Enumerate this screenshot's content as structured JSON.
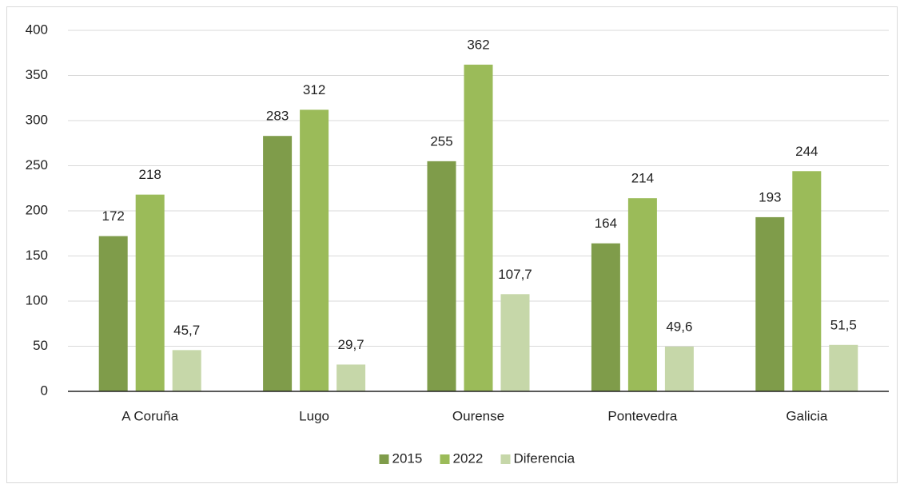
{
  "chart_data": {
    "type": "bar",
    "categories": [
      "A Coruña",
      "Lugo",
      "Ourense",
      "Pontevedra",
      "Galicia"
    ],
    "series": [
      {
        "name": "2015",
        "color": "#7f9c4a",
        "values": [
          172,
          283,
          255,
          164,
          193
        ]
      },
      {
        "name": "2022",
        "color": "#9bbb59",
        "values": [
          218,
          312,
          362,
          214,
          244
        ]
      },
      {
        "name": "Diferencia",
        "color": "#c6d7a9",
        "values": [
          45.7,
          29.7,
          107.7,
          49.6,
          51.5
        ],
        "value_labels": [
          "45,7",
          "29,7",
          "107,7",
          "49,6",
          "51,5"
        ]
      }
    ],
    "ylim": [
      0,
      400
    ],
    "yticks": [
      0,
      50,
      100,
      150,
      200,
      250,
      300,
      350,
      400
    ],
    "grid": true,
    "legend": "bottom"
  }
}
